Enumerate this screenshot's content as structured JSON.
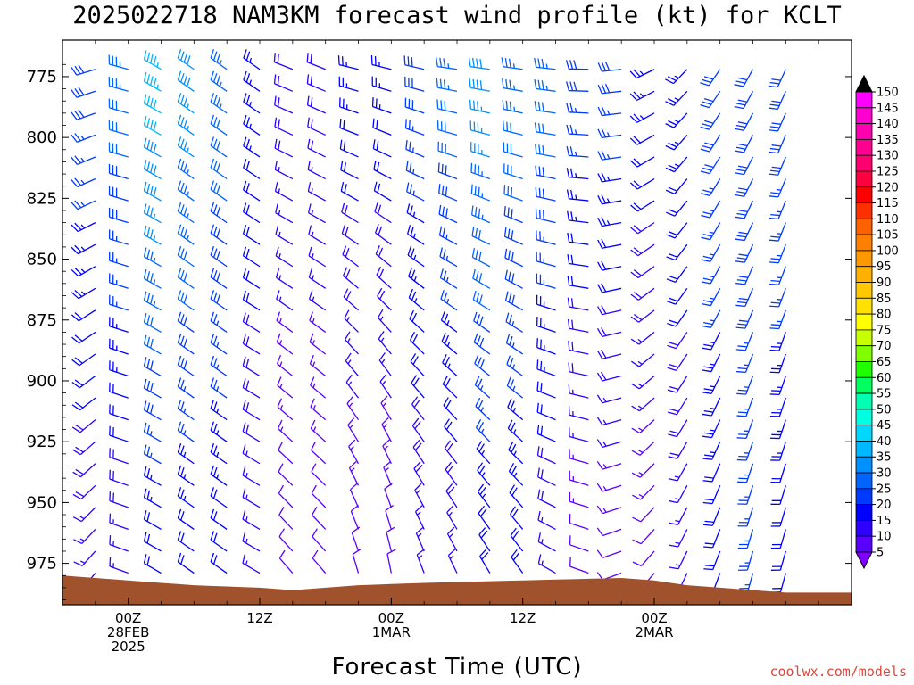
{
  "chart_data": {
    "type": "wind-profile",
    "title": "2025022718 NAM3KM forecast wind profile (kt) for KCLT",
    "xlabel": "Forecast Time (UTC)",
    "ylabel": "",
    "y_axis": {
      "unit": "",
      "range": [
        760,
        992
      ],
      "ticks": [
        775,
        800,
        825,
        850,
        875,
        900,
        925,
        950,
        975
      ]
    },
    "x_axis": {
      "range": [
        "2025-02-27T18Z",
        "2025-03-02T18Z"
      ],
      "tick_labels": [
        {
          "lines": [
            "00Z",
            "28FEB",
            "2025"
          ]
        },
        {
          "lines": [
            "12Z"
          ]
        },
        {
          "lines": [
            "00Z",
            "1MAR"
          ]
        },
        {
          "lines": [
            "12Z"
          ]
        },
        {
          "lines": [
            "00Z",
            "2MAR"
          ]
        }
      ]
    },
    "colorbar": {
      "unit": "kt",
      "levels": [
        5,
        10,
        15,
        20,
        25,
        30,
        35,
        40,
        45,
        50,
        55,
        60,
        65,
        70,
        75,
        80,
        85,
        90,
        95,
        100,
        105,
        110,
        115,
        120,
        125,
        130,
        135,
        140,
        145,
        150
      ],
      "colors": [
        "#8000ff",
        "#5a00ff",
        "#2d00ff",
        "#0000ff",
        "#003aff",
        "#0064ff",
        "#0090ff",
        "#00b8ff",
        "#00d8ff",
        "#00ffe0",
        "#00ffb0",
        "#00ff60",
        "#20ff00",
        "#80ff00",
        "#c8ff00",
        "#ffff00",
        "#ffe000",
        "#ffc800",
        "#ffb000",
        "#ff9800",
        "#ff8000",
        "#ff6000",
        "#ff3000",
        "#ff0000",
        "#ff0040",
        "#ff0070",
        "#ff0090",
        "#ff00b0",
        "#ff00d0",
        "#ff00ff"
      ]
    },
    "terrain_color": "#a0522d",
    "columns": [
      {
        "time": "2025-02-27T18Z",
        "speed_kt": 25,
        "dir_deg": 230,
        "speed_bottom_kt": 15,
        "dir_bottom_deg": 205
      },
      {
        "time": "2025-02-27T21Z",
        "speed_kt": 30,
        "dir_deg": 255,
        "speed_bottom_kt": 15,
        "dir_bottom_deg": 220
      },
      {
        "time": "2025-02-28T00Z",
        "speed_kt": 35,
        "dir_deg": 285,
        "speed_bottom_kt": 15,
        "dir_bottom_deg": 290
      },
      {
        "time": "2025-02-28T03Z",
        "speed_kt": 45,
        "dir_deg": 300,
        "speed_bottom_kt": 20,
        "dir_bottom_deg": 300
      },
      {
        "time": "2025-02-28T06Z",
        "speed_kt": 40,
        "dir_deg": 305,
        "speed_bottom_kt": 20,
        "dir_bottom_deg": 305
      },
      {
        "time": "2025-02-28T09Z",
        "speed_kt": 35,
        "dir_deg": 305,
        "speed_bottom_kt": 20,
        "dir_bottom_deg": 305
      },
      {
        "time": "2025-02-28T12Z",
        "speed_kt": 25,
        "dir_deg": 305,
        "speed_bottom_kt": 15,
        "dir_bottom_deg": 300
      },
      {
        "time": "2025-02-28T15Z",
        "speed_kt": 20,
        "dir_deg": 290,
        "speed_bottom_kt": 10,
        "dir_bottom_deg": 320
      },
      {
        "time": "2025-02-28T18Z",
        "speed_kt": 20,
        "dir_deg": 290,
        "speed_bottom_kt": 10,
        "dir_bottom_deg": 320
      },
      {
        "time": "2025-02-28T21Z",
        "speed_kt": 25,
        "dir_deg": 280,
        "speed_bottom_kt": 10,
        "dir_bottom_deg": 345
      },
      {
        "time": "2025-03-01T00Z",
        "speed_kt": 25,
        "dir_deg": 280,
        "speed_bottom_kt": 10,
        "dir_bottom_deg": 350
      },
      {
        "time": "2025-03-01T03Z",
        "speed_kt": 30,
        "dir_deg": 280,
        "speed_bottom_kt": 15,
        "dir_bottom_deg": 340
      },
      {
        "time": "2025-03-01T06Z",
        "speed_kt": 35,
        "dir_deg": 275,
        "speed_bottom_kt": 15,
        "dir_bottom_deg": 335
      },
      {
        "time": "2025-03-01T09Z",
        "speed_kt": 40,
        "dir_deg": 275,
        "speed_bottom_kt": 20,
        "dir_bottom_deg": 330
      },
      {
        "time": "2025-03-01T12Z",
        "speed_kt": 35,
        "dir_deg": 275,
        "speed_bottom_kt": 20,
        "dir_bottom_deg": 325
      },
      {
        "time": "2025-03-01T15Z",
        "speed_kt": 35,
        "dir_deg": 275,
        "speed_bottom_kt": 15,
        "dir_bottom_deg": 300
      },
      {
        "time": "2025-03-01T18Z",
        "speed_kt": 30,
        "dir_deg": 270,
        "speed_bottom_kt": 10,
        "dir_bottom_deg": 290
      },
      {
        "time": "2025-03-01T21Z",
        "speed_kt": 30,
        "dir_deg": 265,
        "speed_bottom_kt": 10,
        "dir_bottom_deg": 250
      },
      {
        "time": "2025-03-02T00Z",
        "speed_kt": 25,
        "dir_deg": 245,
        "speed_bottom_kt": 10,
        "dir_bottom_deg": 220
      },
      {
        "time": "2025-03-02T03Z",
        "speed_kt": 25,
        "dir_deg": 225,
        "speed_bottom_kt": 15,
        "dir_bottom_deg": 205
      },
      {
        "time": "2025-03-02T06Z",
        "speed_kt": 30,
        "dir_deg": 215,
        "speed_bottom_kt": 20,
        "dir_bottom_deg": 200
      },
      {
        "time": "2025-03-02T09Z",
        "speed_kt": 30,
        "dir_deg": 210,
        "speed_bottom_kt": 25,
        "dir_bottom_deg": 195
      },
      {
        "time": "2025-03-02T12Z",
        "speed_kt": 30,
        "dir_deg": 205,
        "speed_bottom_kt": 20,
        "dir_bottom_deg": 195
      }
    ],
    "surface_pressure": [
      {
        "time": "2025-02-27T18Z",
        "hpa": 980
      },
      {
        "time": "2025-02-28T00Z",
        "hpa": 982
      },
      {
        "time": "2025-02-28T06Z",
        "hpa": 984
      },
      {
        "time": "2025-02-28T12Z",
        "hpa": 985
      },
      {
        "time": "2025-02-28T15Z",
        "hpa": 986
      },
      {
        "time": "2025-02-28T21Z",
        "hpa": 984
      },
      {
        "time": "2025-03-01T03Z",
        "hpa": 983
      },
      {
        "time": "2025-03-01T12Z",
        "hpa": 982
      },
      {
        "time": "2025-03-01T21Z",
        "hpa": 981
      },
      {
        "time": "2025-03-02T00Z",
        "hpa": 982
      },
      {
        "time": "2025-03-02T03Z",
        "hpa": 984
      },
      {
        "time": "2025-03-02T06Z",
        "hpa": 985
      },
      {
        "time": "2025-03-02T12Z",
        "hpa": 987
      }
    ]
  },
  "credit": "coolwx.com/models"
}
